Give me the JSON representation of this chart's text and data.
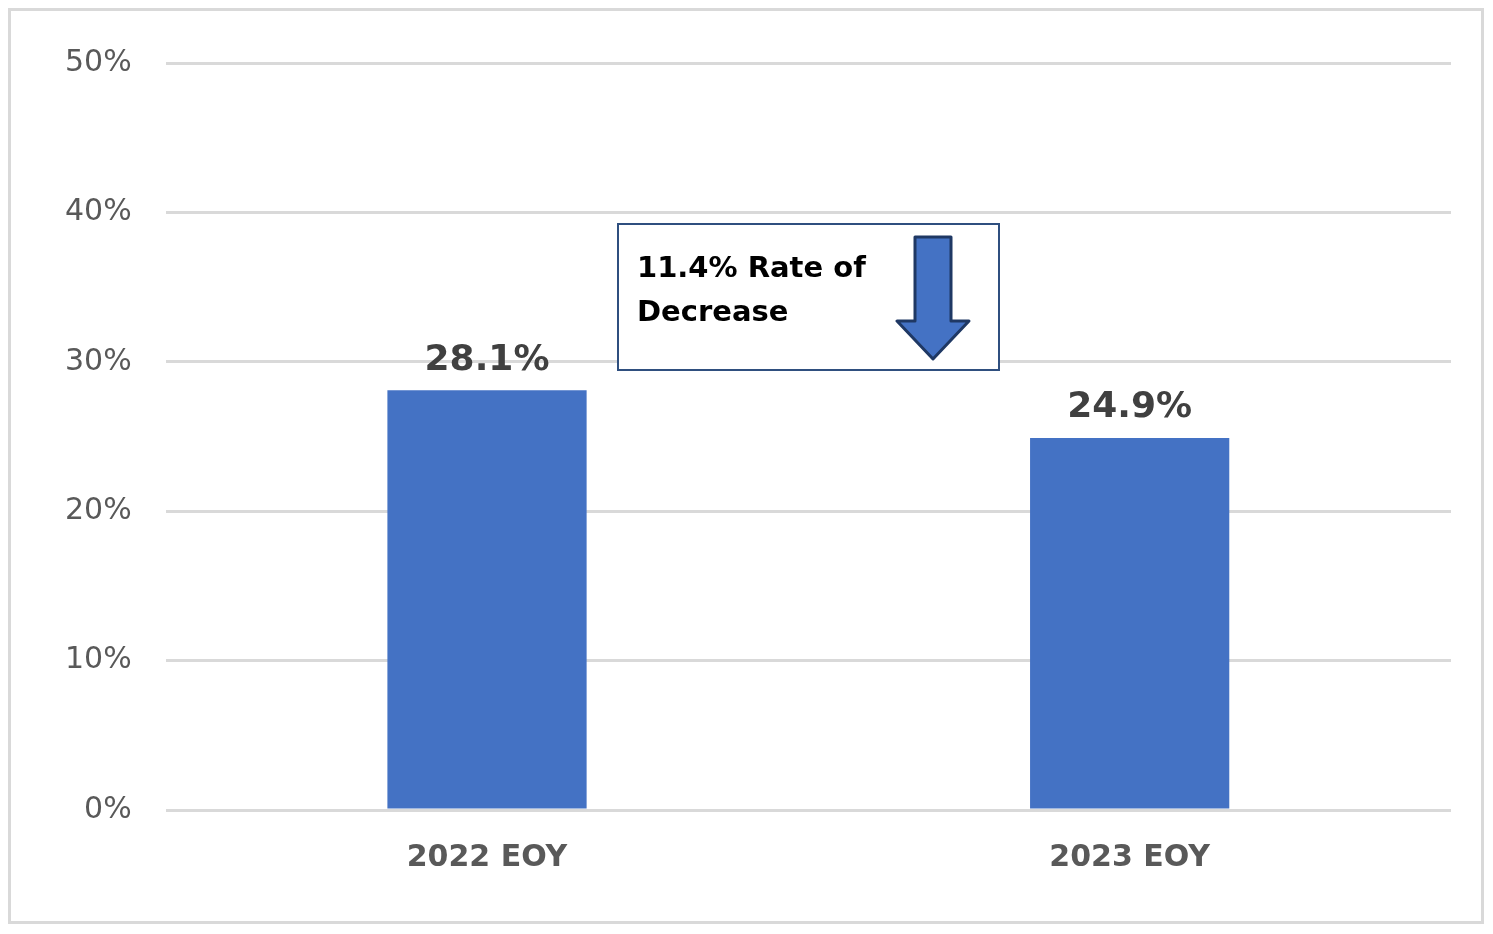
{
  "chart_data": {
    "type": "bar",
    "categories": [
      "2022 EOY",
      "2023 EOY"
    ],
    "values": [
      28.1,
      24.9
    ],
    "color": "#4472c4",
    "value_labels": [
      "28.1%",
      "24.9%"
    ],
    "ylim": [
      0,
      50
    ],
    "yticks": [
      {
        "value": 0,
        "label": "0%"
      },
      {
        "value": 10,
        "label": "10%"
      },
      {
        "value": 20,
        "label": "20%"
      },
      {
        "value": 30,
        "label": "30%"
      },
      {
        "value": 40,
        "label": "40%"
      },
      {
        "value": 50,
        "label": "50%"
      }
    ],
    "grid": "y",
    "annotations": [
      "11.4% Rate of Decrease"
    ]
  }
}
